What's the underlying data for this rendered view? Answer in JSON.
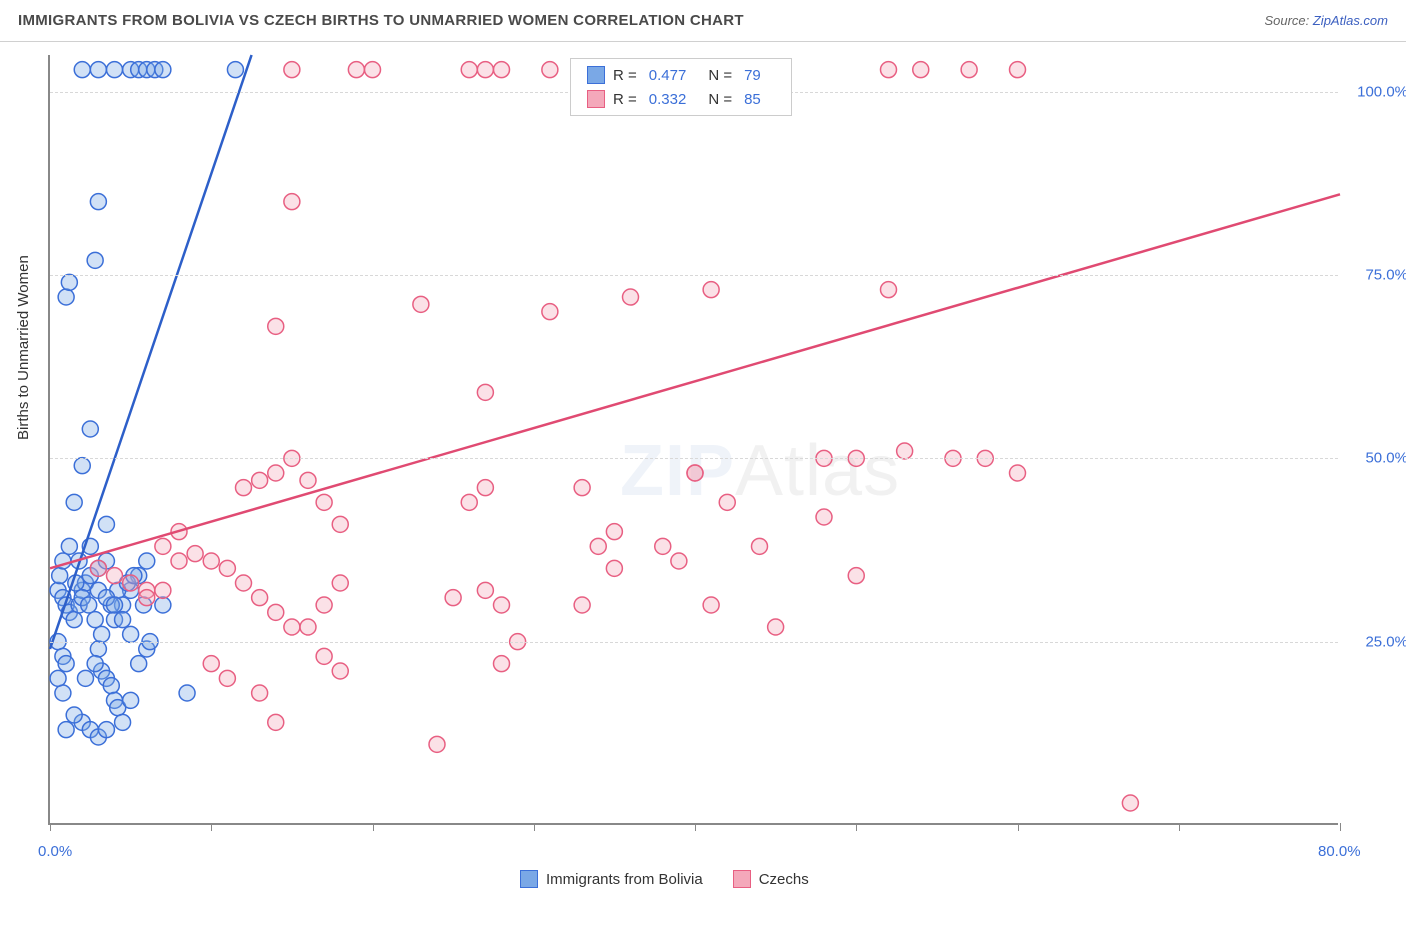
{
  "header": {
    "title": "IMMIGRANTS FROM BOLIVIA VS CZECH BIRTHS TO UNMARRIED WOMEN CORRELATION CHART",
    "source_prefix": "Source: ",
    "source_link": "ZipAtlas.com"
  },
  "chart": {
    "type": "scatter",
    "y_axis_label": "Births to Unmarried Women",
    "xlim": [
      0,
      80
    ],
    "ylim": [
      0,
      105
    ],
    "x_ticks": [
      0,
      10,
      20,
      30,
      40,
      50,
      60,
      70,
      80
    ],
    "x_tick_labels": {
      "0": "0.0%",
      "80": "80.0%"
    },
    "y_gridlines": [
      25,
      50,
      75,
      100
    ],
    "y_tick_labels": {
      "25": "25.0%",
      "50": "50.0%",
      "75": "75.0%",
      "100": "100.0%"
    },
    "background_color": "#ffffff",
    "grid_color": "#d8d8d8",
    "axis_color": "#888888",
    "tick_label_color": "#3b6fd8",
    "watermark": "ZIPAtlas",
    "marker_radius": 8,
    "series": [
      {
        "id": "bolivia",
        "label": "Immigrants from Bolivia",
        "fill": "#7aa8e6",
        "stroke": "#3b6fd8",
        "line_color": "#2d5fc9",
        "R": 0.477,
        "N": 79,
        "trend": {
          "x1": 0,
          "y1": 24,
          "x2": 12.5,
          "y2": 105
        },
        "points": [
          [
            0.5,
            32
          ],
          [
            0.6,
            34
          ],
          [
            0.8,
            31
          ],
          [
            1.0,
            30
          ],
          [
            1.2,
            29
          ],
          [
            0.5,
            25
          ],
          [
            0.8,
            23
          ],
          [
            1.0,
            22
          ],
          [
            1.5,
            28
          ],
          [
            1.8,
            30
          ],
          [
            2.0,
            32
          ],
          [
            2.2,
            33
          ],
          [
            2.5,
            34
          ],
          [
            2.8,
            28
          ],
          [
            3.0,
            24
          ],
          [
            3.2,
            21
          ],
          [
            3.5,
            20
          ],
          [
            3.8,
            19
          ],
          [
            4.0,
            17
          ],
          [
            4.2,
            16
          ],
          [
            2.0,
            14
          ],
          [
            2.5,
            13
          ],
          [
            3.0,
            12
          ],
          [
            3.5,
            13
          ],
          [
            4.5,
            14
          ],
          [
            5.0,
            17
          ],
          [
            5.5,
            22
          ],
          [
            6.0,
            24
          ],
          [
            4.0,
            28
          ],
          [
            4.5,
            30
          ],
          [
            5.0,
            32
          ],
          [
            5.5,
            34
          ],
          [
            6.0,
            36
          ],
          [
            3.0,
            35
          ],
          [
            3.5,
            36
          ],
          [
            1.5,
            44
          ],
          [
            2.0,
            49
          ],
          [
            2.5,
            54
          ],
          [
            1.0,
            72
          ],
          [
            1.2,
            74
          ],
          [
            2.8,
            77
          ],
          [
            3.0,
            85
          ],
          [
            8.5,
            18
          ],
          [
            7.0,
            30
          ],
          [
            2.0,
            103
          ],
          [
            3.0,
            103
          ],
          [
            4.0,
            103
          ],
          [
            5.0,
            103
          ],
          [
            5.5,
            103
          ],
          [
            6.0,
            103
          ],
          [
            6.5,
            103
          ],
          [
            7.0,
            103
          ],
          [
            11.5,
            103
          ],
          [
            1.0,
            13
          ],
          [
            1.5,
            15
          ],
          [
            0.8,
            18
          ],
          [
            0.5,
            20
          ],
          [
            2.2,
            20
          ],
          [
            2.8,
            22
          ],
          [
            3.2,
            26
          ],
          [
            3.8,
            30
          ],
          [
            4.2,
            32
          ],
          [
            4.8,
            33
          ],
          [
            5.2,
            34
          ],
          [
            5.8,
            30
          ],
          [
            6.2,
            25
          ],
          [
            3.5,
            41
          ],
          [
            1.8,
            36
          ],
          [
            2.5,
            38
          ],
          [
            3.0,
            32
          ],
          [
            3.5,
            31
          ],
          [
            4.0,
            30
          ],
          [
            4.5,
            28
          ],
          [
            5.0,
            26
          ],
          [
            0.8,
            36
          ],
          [
            1.2,
            38
          ],
          [
            1.6,
            33
          ],
          [
            2.0,
            31
          ],
          [
            2.4,
            30
          ]
        ]
      },
      {
        "id": "czechs",
        "label": "Czechs",
        "fill": "#f4a8ba",
        "stroke": "#e85f82",
        "line_color": "#e04a72",
        "R": 0.332,
        "N": 85,
        "trend": {
          "x1": 0,
          "y1": 35,
          "x2": 80,
          "y2": 86
        },
        "points": [
          [
            3,
            35
          ],
          [
            4,
            34
          ],
          [
            5,
            33
          ],
          [
            6,
            32
          ],
          [
            7,
            38
          ],
          [
            8,
            40
          ],
          [
            9,
            37
          ],
          [
            10,
            36
          ],
          [
            11,
            35
          ],
          [
            12,
            33
          ],
          [
            13,
            31
          ],
          [
            14,
            29
          ],
          [
            15,
            27
          ],
          [
            16,
            27
          ],
          [
            17,
            30
          ],
          [
            18,
            33
          ],
          [
            12,
            46
          ],
          [
            13,
            47
          ],
          [
            14,
            48
          ],
          [
            15,
            50
          ],
          [
            16,
            47
          ],
          [
            17,
            44
          ],
          [
            18,
            41
          ],
          [
            10,
            22
          ],
          [
            11,
            20
          ],
          [
            13,
            18
          ],
          [
            17,
            23
          ],
          [
            18,
            21
          ],
          [
            14,
            14
          ],
          [
            24,
            11
          ],
          [
            25,
            31
          ],
          [
            26,
            44
          ],
          [
            27,
            32
          ],
          [
            28,
            30
          ],
          [
            29,
            25
          ],
          [
            28,
            22
          ],
          [
            27,
            46
          ],
          [
            33,
            46
          ],
          [
            34,
            38
          ],
          [
            35,
            40
          ],
          [
            33,
            30
          ],
          [
            39,
            36
          ],
          [
            40,
            48
          ],
          [
            36,
            72
          ],
          [
            38,
            38
          ],
          [
            41,
            30
          ],
          [
            35,
            35
          ],
          [
            14,
            68
          ],
          [
            15,
            85
          ],
          [
            23,
            71
          ],
          [
            31,
            70
          ],
          [
            27,
            59
          ],
          [
            45,
            27
          ],
          [
            50,
            34
          ],
          [
            48,
            50
          ],
          [
            40,
            48
          ],
          [
            44,
            38
          ],
          [
            15,
            103
          ],
          [
            19,
            103
          ],
          [
            20,
            103
          ],
          [
            26,
            103
          ],
          [
            27,
            103
          ],
          [
            28,
            103
          ],
          [
            31,
            103
          ],
          [
            34,
            103
          ],
          [
            40,
            103
          ],
          [
            43,
            103
          ],
          [
            44,
            103
          ],
          [
            52,
            103
          ],
          [
            54,
            103
          ],
          [
            57,
            103
          ],
          [
            60,
            103
          ],
          [
            41,
            73
          ],
          [
            52,
            73
          ],
          [
            42,
            44
          ],
          [
            48,
            42
          ],
          [
            50,
            50
          ],
          [
            53,
            51
          ],
          [
            56,
            50
          ],
          [
            58,
            50
          ],
          [
            60,
            48
          ],
          [
            6,
            31
          ],
          [
            7,
            32
          ],
          [
            8,
            36
          ],
          [
            67,
            3
          ]
        ]
      }
    ]
  },
  "legend_top": {
    "rows": [
      {
        "series": "bolivia",
        "r_label": "R =",
        "r_val": "0.477",
        "n_label": "N =",
        "n_val": "79"
      },
      {
        "series": "czechs",
        "r_label": "R =",
        "r_val": "0.332",
        "n_label": "N =",
        "n_val": "85"
      }
    ]
  },
  "legend_bottom": {
    "items": [
      {
        "series": "bolivia",
        "label": "Immigrants from Bolivia"
      },
      {
        "series": "czechs",
        "label": "Czechs"
      }
    ]
  }
}
